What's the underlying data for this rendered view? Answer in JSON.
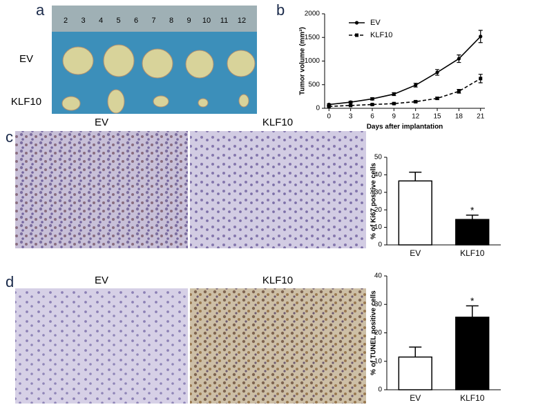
{
  "panels": {
    "a": {
      "label": "a",
      "rows": [
        "EV",
        "KLF10"
      ],
      "ruler": [
        2,
        3,
        4,
        5,
        6,
        7,
        8,
        9,
        10,
        11,
        12
      ]
    },
    "b": {
      "label": "b"
    },
    "c": {
      "label": "c",
      "headers": [
        "EV",
        "KLF10"
      ]
    },
    "d": {
      "label": "d",
      "headers": [
        "EV",
        "KLF10"
      ]
    }
  },
  "chart_data": [
    {
      "type": "line",
      "xlabel": "Days after implantation",
      "ylabel": "Tumor volume (mm³)",
      "x": [
        0,
        3,
        6,
        9,
        12,
        15,
        18,
        21
      ],
      "series": [
        {
          "name": "EV",
          "color": "#000000",
          "line_style": "solid",
          "marker": "circle",
          "values": [
            80,
            130,
            200,
            300,
            490,
            760,
            1050,
            1520
          ],
          "errors": [
            15,
            20,
            25,
            30,
            40,
            60,
            80,
            130
          ]
        },
        {
          "name": "KLF10",
          "color": "#000000",
          "line_style": "dashed",
          "marker": "square",
          "values": [
            40,
            60,
            80,
            100,
            140,
            210,
            360,
            630
          ],
          "errors": [
            10,
            10,
            12,
            15,
            20,
            25,
            40,
            90
          ]
        }
      ],
      "xlim": [
        -0.6,
        21.6
      ],
      "xticks": [
        0,
        3,
        6,
        9,
        12,
        15,
        18,
        21
      ],
      "ylim": [
        0,
        2000
      ],
      "yticks": [
        0,
        500,
        1000,
        1500,
        2000
      ],
      "legend": "upper left"
    },
    {
      "type": "bar",
      "ylabel": "% of Ki67 positive cells",
      "categories": [
        "EV",
        "KLF10"
      ],
      "values": [
        36.5,
        14.5
      ],
      "errors": [
        5,
        2.5
      ],
      "colors": [
        "#ffffff",
        "#000000"
      ],
      "significance": [
        null,
        "*"
      ],
      "ylim": [
        0,
        50
      ],
      "yticks": [
        0,
        10,
        20,
        30,
        40,
        50
      ]
    },
    {
      "type": "bar",
      "ylabel": "% of TUNEL positive cells",
      "categories": [
        "EV",
        "KLF10"
      ],
      "values": [
        11.5,
        25.5
      ],
      "errors": [
        3.5,
        4
      ],
      "colors": [
        "#ffffff",
        "#000000"
      ],
      "significance": [
        null,
        "*"
      ],
      "ylim": [
        0,
        40
      ],
      "yticks": [
        0,
        10,
        20,
        30,
        40
      ]
    }
  ]
}
